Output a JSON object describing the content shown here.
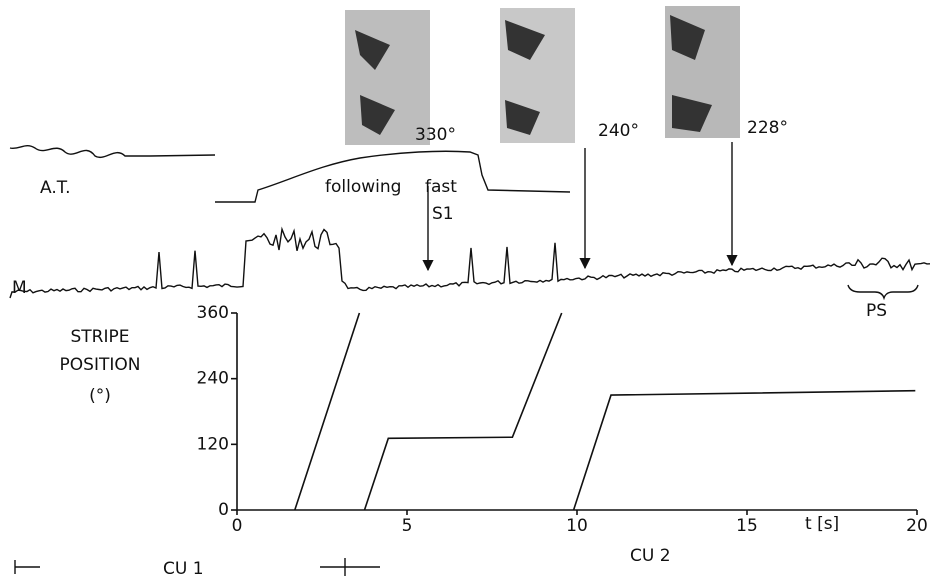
{
  "chart_data": {
    "type": "line",
    "ylabel": [
      "STRIPE",
      "POSITION",
      "(°)"
    ],
    "xlabel": "t [s]",
    "x": [
      1.7,
      3.6,
      3.65,
      3.75,
      4.45,
      8.1,
      9.55,
      9.7,
      9.9,
      11.0,
      19.95
    ],
    "series": [
      {
        "color": "#111111",
        "values": [
          0,
          360,
          null,
          0,
          131,
          133,
          360,
          null,
          0,
          210,
          218
        ]
      }
    ],
    "xlim": [
      0,
      20
    ],
    "xticks": [
      0,
      5,
      10,
      15,
      20
    ],
    "ylim": [
      0,
      360
    ],
    "yticks": [
      0,
      120,
      240,
      360
    ],
    "annotations": [
      "A.T.",
      "following",
      "fast",
      "S1",
      "M",
      "PS",
      "330°",
      "240°",
      "228°",
      "CU 1",
      "CU 2"
    ]
  }
}
